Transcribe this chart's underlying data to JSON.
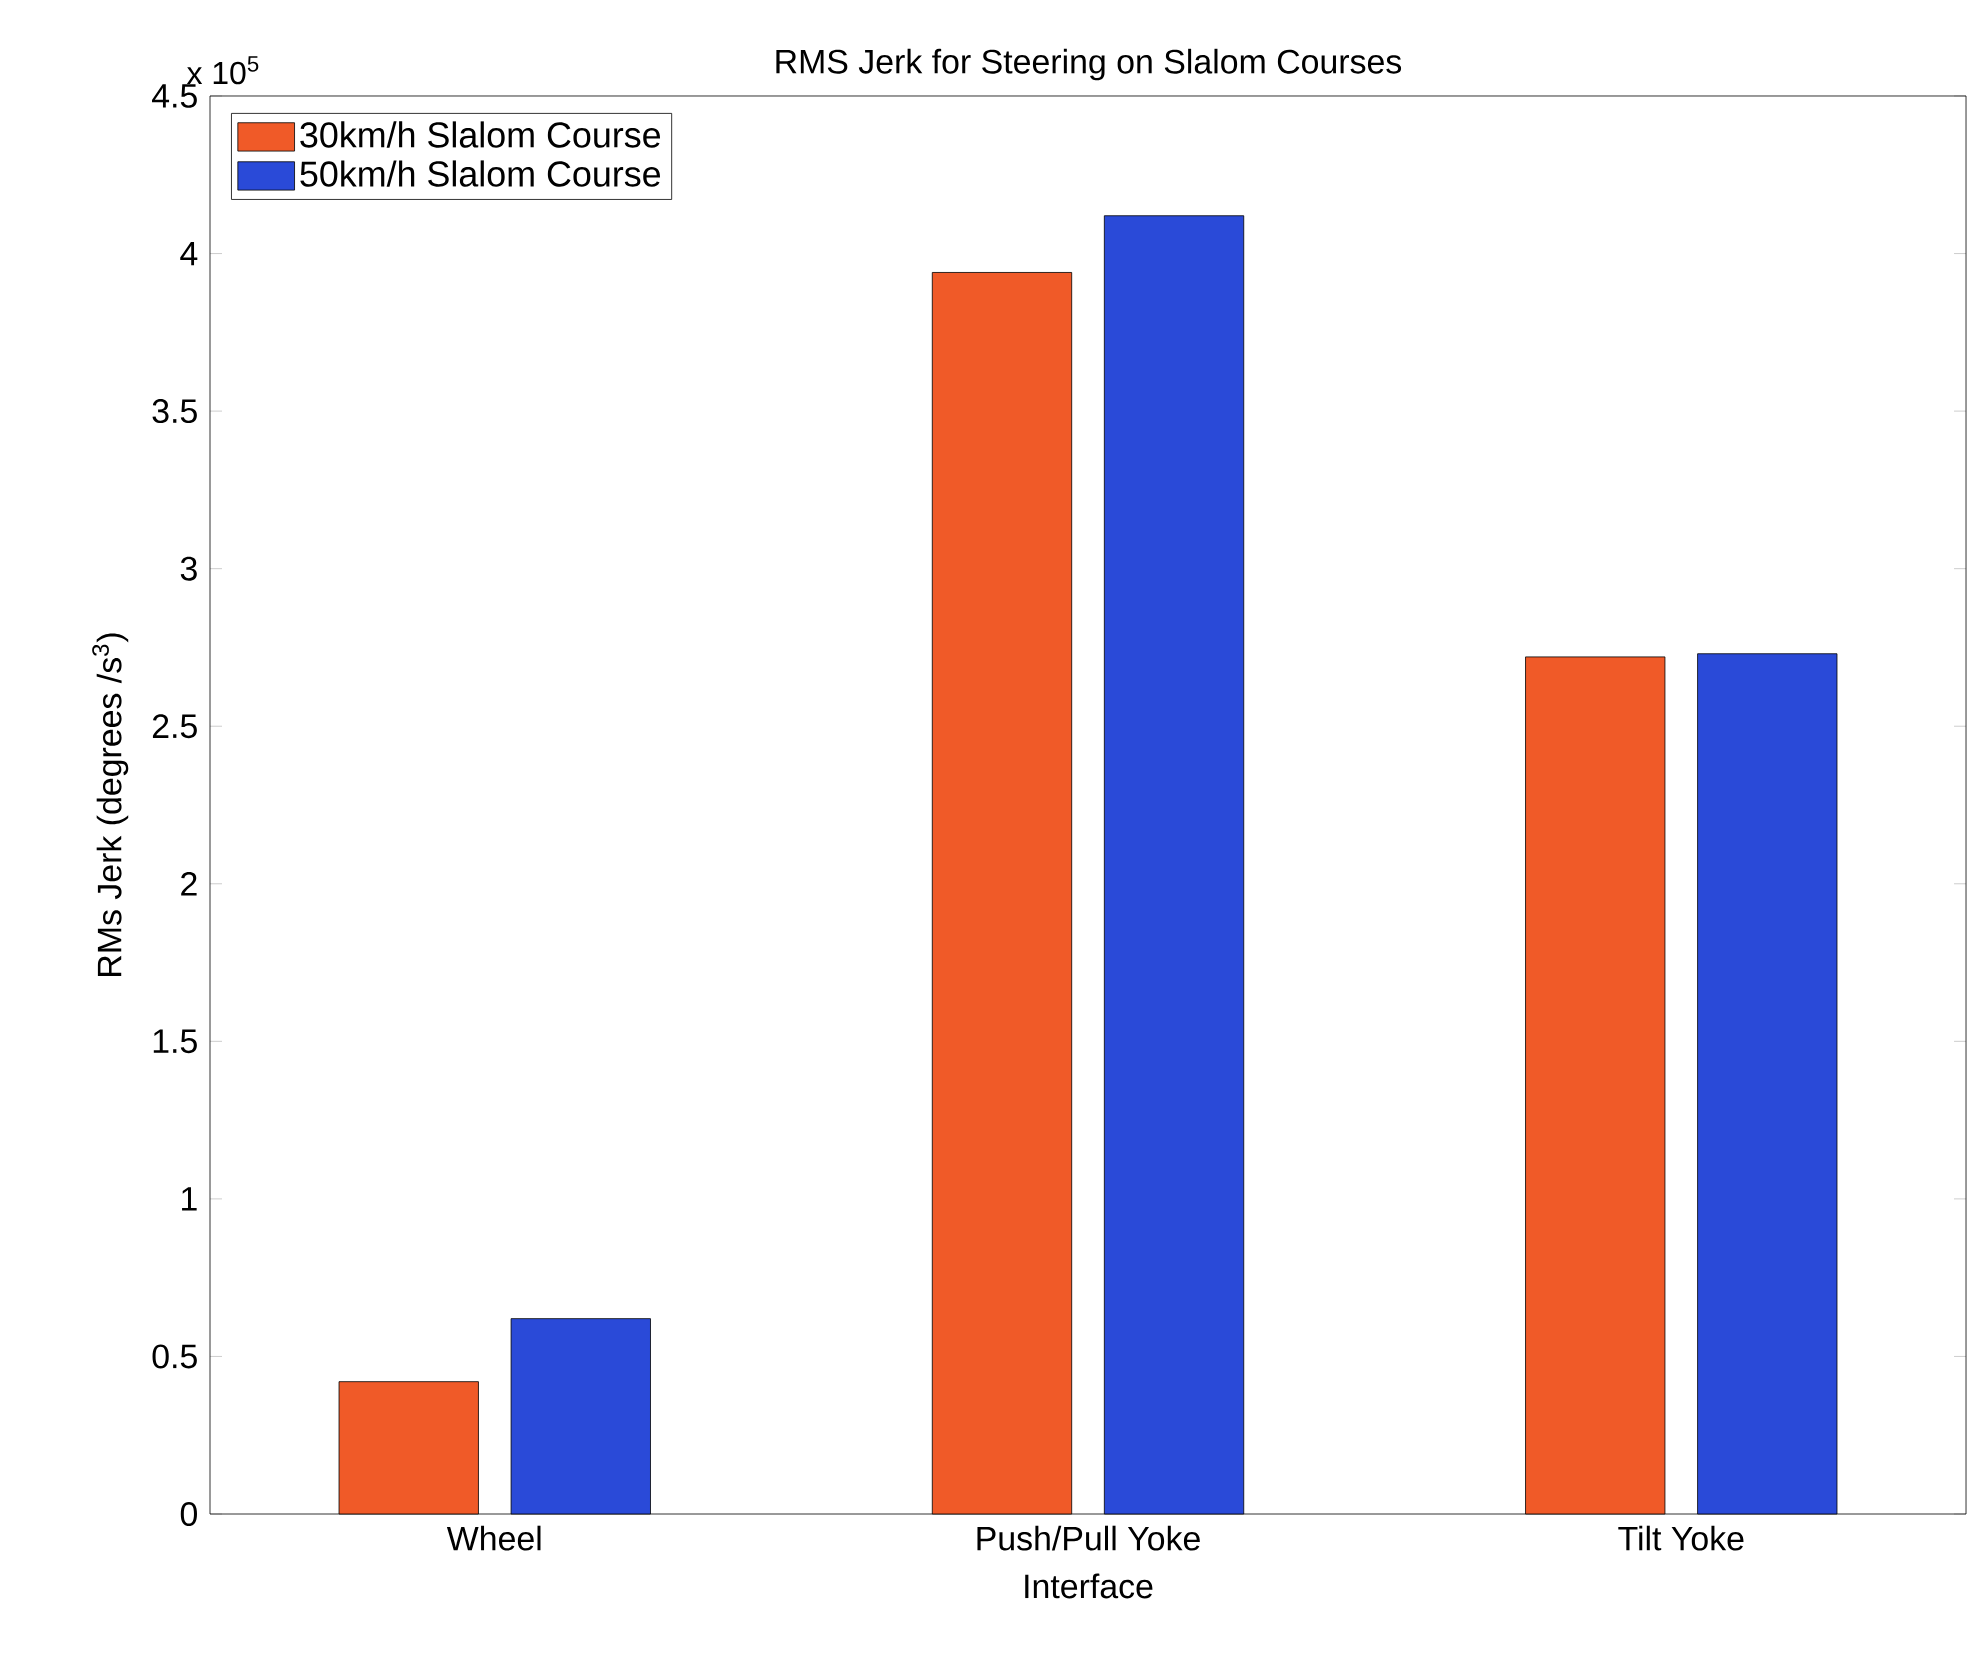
{
  "chart_data": {
    "type": "bar",
    "title": "RMS Jerk for Steering on Slalom Courses",
    "xlabel": "Interface",
    "ylabel": "RMs Jerk (degrees /s$^{3}$)",
    "annotations": [
      "x 10$^{5}$"
    ],
    "categories": [
      "Wheel",
      "Push/Pull Yoke",
      "Tilt Yoke"
    ],
    "series": [
      {
        "name": "30km/h Slalom Course",
        "color": "#f05a28",
        "values": [
          0.42,
          3.94,
          2.72
        ]
      },
      {
        "name": "50km/h Slalom Course",
        "color": "#2a4ad8",
        "values": [
          0.62,
          4.12,
          2.73
        ]
      }
    ],
    "ylim": [
      0,
      4.5
    ],
    "yticks": [
      0,
      0.5,
      1,
      1.5,
      2,
      2.5,
      3,
      3.5,
      4,
      4.5
    ],
    "legend": "top left"
  }
}
